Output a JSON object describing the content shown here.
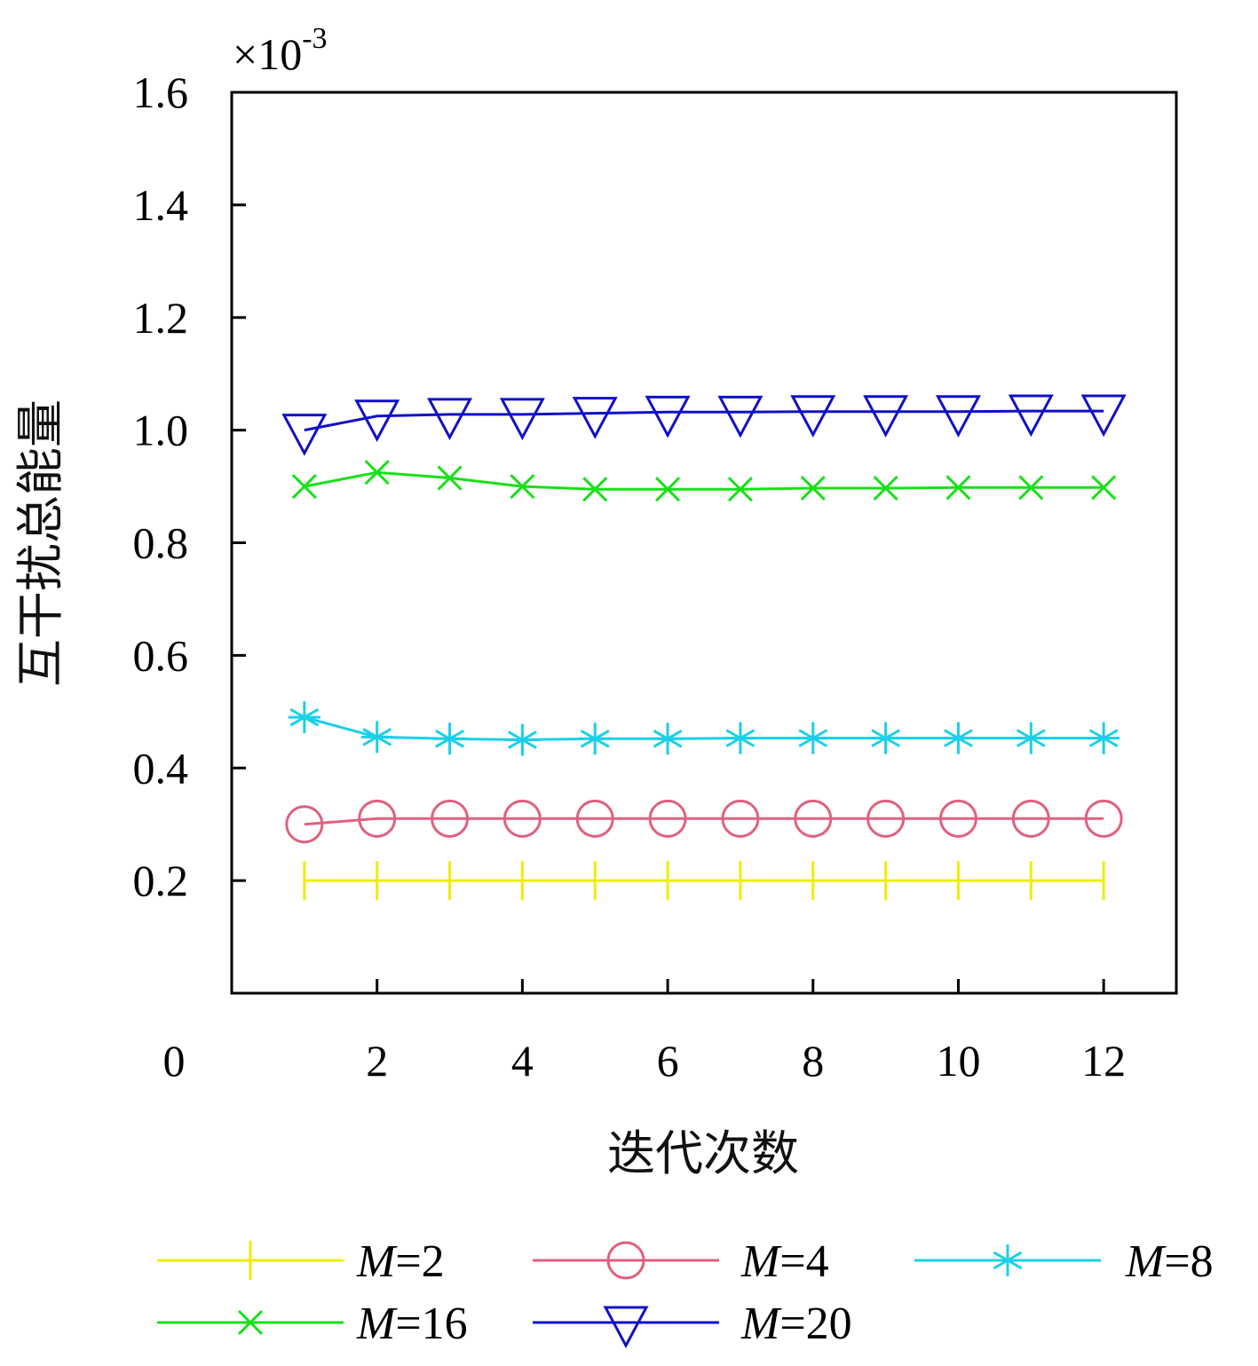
{
  "chart_data": {
    "type": "line",
    "scale_prefix": "×10",
    "scale_exponent": "-3",
    "xlabel": "迭代次数",
    "ylabel": "互干扰总能量",
    "xlim": [
      0,
      13
    ],
    "ylim": [
      0,
      1.6
    ],
    "x_ticks": [
      2,
      4,
      6,
      8,
      10,
      12
    ],
    "x_tick_labels": [
      "2",
      "4",
      "6",
      "8",
      "10",
      "12"
    ],
    "x_origin_label": "0",
    "y_ticks": [
      0.2,
      0.4,
      0.6,
      0.8,
      1.0,
      1.2,
      1.4,
      1.6
    ],
    "y_tick_labels": [
      "0.2",
      "0.4",
      "0.6",
      "0.8",
      "1.0",
      "1.2",
      "1.4",
      "1.6"
    ],
    "grid": false,
    "legend_position": "bottom",
    "x": [
      1,
      2,
      3,
      4,
      5,
      6,
      7,
      8,
      9,
      10,
      11,
      12
    ],
    "series": [
      {
        "name": "M=2",
        "italic": "M",
        "rest": "=2",
        "color": "#eeee00",
        "marker": "plus",
        "values": [
          0.2,
          0.2,
          0.2,
          0.2,
          0.2,
          0.2,
          0.2,
          0.2,
          0.2,
          0.2,
          0.2,
          0.2
        ]
      },
      {
        "name": "M=4",
        "italic": "M",
        "rest": "=4",
        "color": "#e0607e",
        "marker": "circle",
        "values": [
          0.3,
          0.31,
          0.31,
          0.31,
          0.31,
          0.31,
          0.31,
          0.31,
          0.31,
          0.31,
          0.31,
          0.31
        ]
      },
      {
        "name": "M=8",
        "italic": "M",
        "rest": "=8",
        "color": "#1ad0e8",
        "marker": "asterisk",
        "values": [
          0.49,
          0.455,
          0.452,
          0.45,
          0.452,
          0.452,
          0.453,
          0.453,
          0.453,
          0.453,
          0.453,
          0.453
        ]
      },
      {
        "name": "M=16",
        "italic": "M",
        "rest": "=16",
        "color": "#18e018",
        "marker": "x",
        "values": [
          0.9,
          0.925,
          0.915,
          0.9,
          0.895,
          0.895,
          0.895,
          0.897,
          0.897,
          0.898,
          0.898,
          0.898
        ]
      },
      {
        "name": "M=20",
        "italic": "M",
        "rest": "=20",
        "color": "#1010c8",
        "marker": "triangle-down",
        "values": [
          1.0,
          1.025,
          1.028,
          1.028,
          1.03,
          1.032,
          1.032,
          1.033,
          1.033,
          1.033,
          1.034,
          1.034
        ]
      }
    ]
  }
}
